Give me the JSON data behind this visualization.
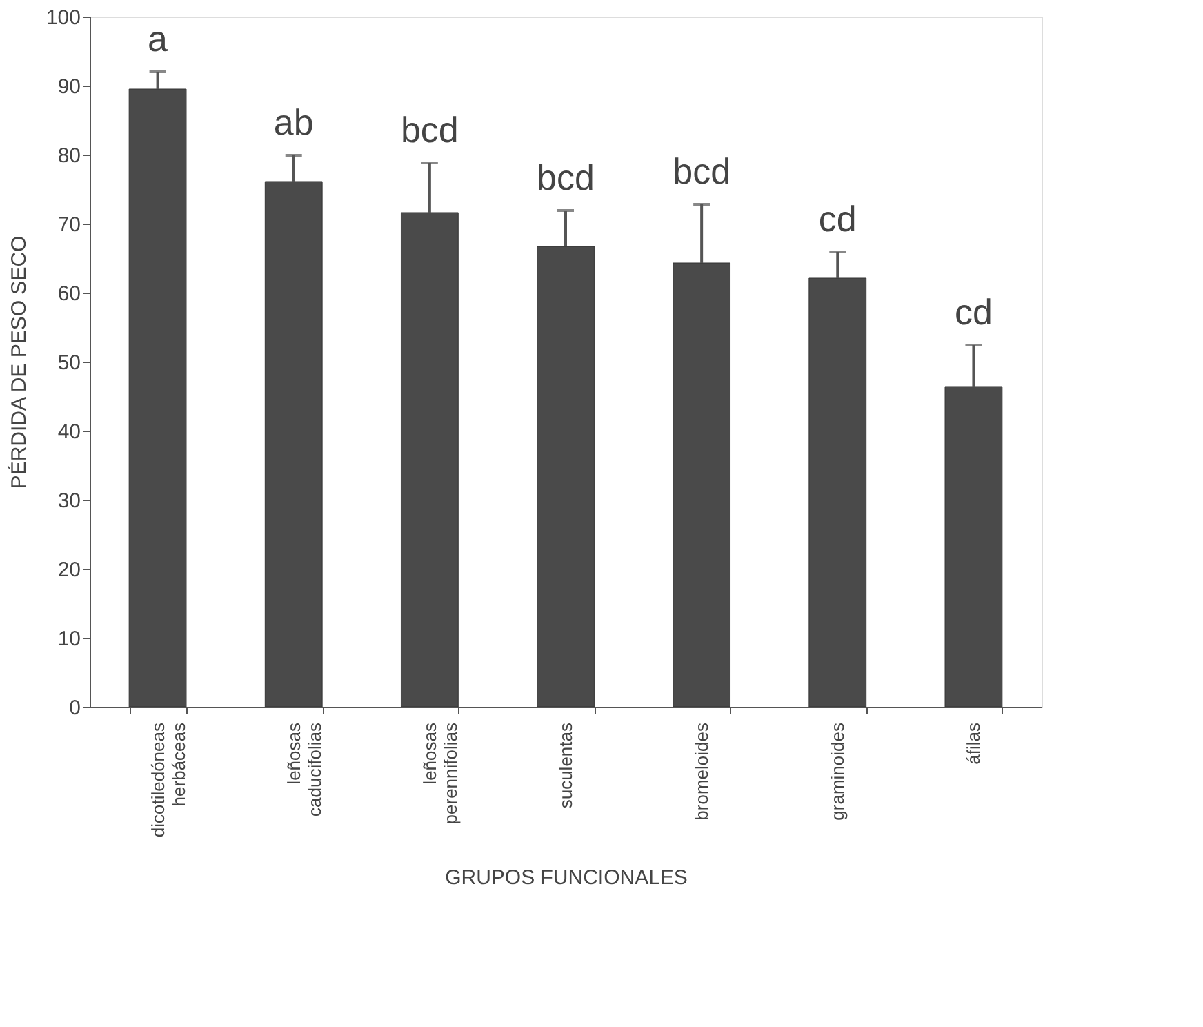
{
  "chart_data": {
    "type": "bar",
    "xlabel": "GRUPOS FUNCIONALES",
    "ylabel": "PÉRDIDA DE PESO SECO",
    "categories": [
      "dicotiledóneas herbáceas",
      "leñosas caducifolias",
      "leñosas perennifolias",
      "suculentas",
      "bromeloides",
      "graminoides",
      "áfilas"
    ],
    "values": [
      89.5,
      76.1,
      71.6,
      66.7,
      64.3,
      62.1,
      46.4
    ],
    "errors": [
      [
        89.5,
        92.0
      ],
      [
        76.1,
        79.9
      ],
      [
        71.6,
        78.8
      ],
      [
        66.7,
        71.9
      ],
      [
        64.3,
        72.8
      ],
      [
        62.1,
        65.9
      ],
      [
        46.4,
        52.4
      ]
    ],
    "color": "#4a4a4a",
    "ylim": [
      0,
      100
    ],
    "yticks": [
      0,
      10,
      20,
      30,
      40,
      50,
      60,
      70,
      80,
      90,
      100
    ],
    "grid": false,
    "annotations": [
      "a",
      "ab",
      "bcd",
      "bcd",
      "bcd",
      "cd",
      "cd"
    ]
  }
}
